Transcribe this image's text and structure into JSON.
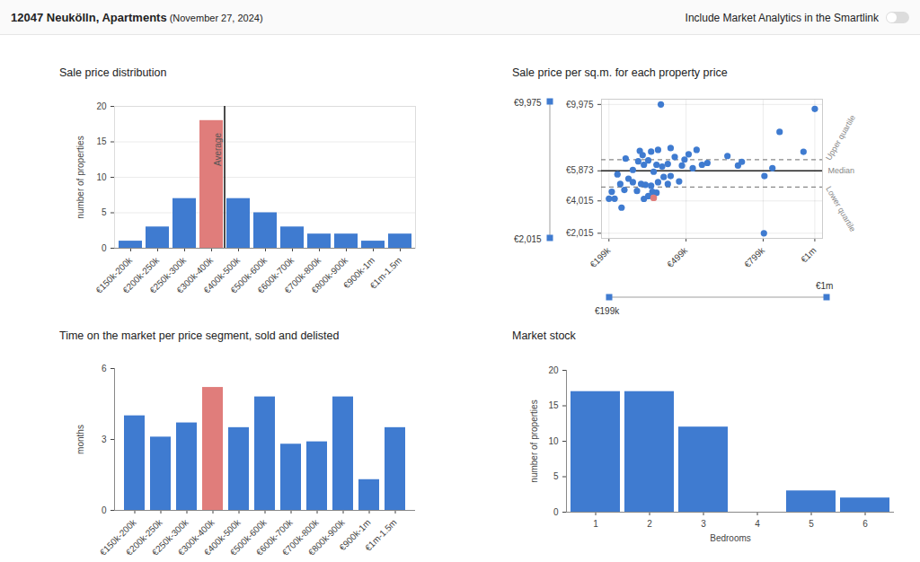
{
  "header": {
    "title": "12047 Neukölln, Apartments",
    "date": "(November 27, 2024)",
    "toggle_label": "Include Market Analytics in the Smartlink"
  },
  "chart_data": [
    {
      "type": "bar",
      "title": "Sale price distribution",
      "categories": [
        "€150k-200k",
        "€200k-250k",
        "€250k-300k",
        "€300k-400k",
        "€400k-500k",
        "€500k-600k",
        "€600k-700k",
        "€700k-800k",
        "€800k-900k",
        "€900k-1m",
        "€1m-1.5m"
      ],
      "values": [
        1,
        3,
        7,
        18,
        7,
        5,
        3,
        2,
        2,
        1,
        2
      ],
      "colors": [
        "#3f7bd0",
        "#3f7bd0",
        "#3f7bd0",
        "#e07d7b",
        "#3f7bd0",
        "#3f7bd0",
        "#3f7bd0",
        "#3f7bd0",
        "#3f7bd0",
        "#3f7bd0",
        "#3f7bd0"
      ],
      "ylabel": "number of properties",
      "ylim": [
        0,
        20
      ],
      "yticks": [
        0,
        5,
        10,
        15,
        20
      ],
      "grid": true,
      "annotations": [
        {
          "text": "Average",
          "after": "€300k-400k"
        }
      ]
    },
    {
      "type": "scatter",
      "title": "Sale price per sq.m. for each property price",
      "x": [
        199000,
        210000,
        221000,
        232000,
        243000,
        248000,
        259000,
        264000,
        275000,
        292000,
        292000,
        308000,
        313000,
        319000,
        324000,
        330000,
        335000,
        335000,
        341000,
        352000,
        352000,
        363000,
        363000,
        368000,
        373000,
        373000,
        384000,
        384000,
        390000,
        390000,
        401000,
        406000,
        412000,
        428000,
        428000,
        439000,
        439000,
        455000,
        472000,
        483000,
        493000,
        509000,
        525000,
        540000,
        561000,
        582000,
        660000,
        701000,
        716000,
        802000,
        804000,
        835000,
        863000,
        956000,
        1000000
      ],
      "values": [
        4150,
        4580,
        4150,
        5660,
        5060,
        3600,
        4690,
        6630,
        5390,
        5930,
        5170,
        4630,
        6460,
        7110,
        5060,
        6840,
        6250,
        4140,
        5010,
        6520,
        4310,
        7060,
        4950,
        4580,
        5820,
        4200,
        6250,
        4520,
        7170,
        5170,
        9975,
        6140,
        5490,
        6300,
        5060,
        7280,
        5550,
        6730,
        5220,
        6200,
        6570,
        6900,
        6030,
        7170,
        6250,
        6360,
        6790,
        6200,
        6430,
        2015,
        5550,
        6040,
        8280,
        7050,
        9700
      ],
      "colors": [
        "#3f7bd0",
        "#3f7bd0",
        "#3f7bd0",
        "#3f7bd0",
        "#3f7bd0",
        "#3f7bd0",
        "#3f7bd0",
        "#3f7bd0",
        "#3f7bd0",
        "#3f7bd0",
        "#3f7bd0",
        "#3f7bd0",
        "#3f7bd0",
        "#3f7bd0",
        "#3f7bd0",
        "#3f7bd0",
        "#3f7bd0",
        "#3f7bd0",
        "#3f7bd0",
        "#3f7bd0",
        "#3f7bd0",
        "#3f7bd0",
        "#3f7bd0",
        "#3f7bd0",
        "#3f7bd0",
        "#e07d7b",
        "#3f7bd0",
        "#3f7bd0",
        "#3f7bd0",
        "#3f7bd0",
        "#3f7bd0",
        "#3f7bd0",
        "#3f7bd0",
        "#3f7bd0",
        "#3f7bd0",
        "#3f7bd0",
        "#3f7bd0",
        "#3f7bd0",
        "#3f7bd0",
        "#3f7bd0",
        "#3f7bd0",
        "#3f7bd0",
        "#3f7bd0",
        "#3f7bd0",
        "#3f7bd0",
        "#3f7bd0",
        "#3f7bd0",
        "#3f7bd0",
        "#3f7bd0",
        "#3f7bd0",
        "#3f7bd0",
        "#3f7bd0",
        "#3f7bd0",
        "#3f7bd0",
        "#3f7bd0"
      ],
      "xlim": [
        170000,
        1030000
      ],
      "xticks": [
        {
          "value": 199000,
          "label": "€199k"
        },
        {
          "value": 499000,
          "label": "€499k"
        },
        {
          "value": 799000,
          "label": "€799k"
        },
        {
          "value": 1000000,
          "label": "€1m"
        }
      ],
      "ylim": [
        1700,
        10300
      ],
      "yticks": [
        {
          "value": 2015,
          "label": "€2,015"
        },
        {
          "value": 4015,
          "label": "€4,015"
        },
        {
          "value": 5873,
          "label": "€5,873"
        },
        {
          "value": 9975,
          "label": "€9,975"
        }
      ],
      "grid": true,
      "reference_lines": [
        {
          "label": "Upper quartile",
          "value": 6560,
          "line_style": "dashed"
        },
        {
          "label": "Median",
          "value": 5873,
          "line_style": "solid"
        },
        {
          "label": "Lower quartile",
          "value": 4870,
          "line_style": "dashed"
        }
      ],
      "sliders": {
        "y": {
          "min": "€2,015",
          "max": "€9,975"
        },
        "x": {
          "min": "€199k",
          "max": "€1m"
        }
      }
    },
    {
      "type": "bar",
      "title": "Time on the market per price segment, sold and delisted",
      "categories": [
        "€150k-200k",
        "€200k-250k",
        "€250k-300k",
        "€300k-400k",
        "€400k-500k",
        "€500k-600k",
        "€600k-700k",
        "€700k-800k",
        "€800k-900k",
        "€900k-1m",
        "€1m-1.5m"
      ],
      "values": [
        4.0,
        3.1,
        3.7,
        5.2,
        3.5,
        4.8,
        2.8,
        2.9,
        4.8,
        1.3,
        3.5
      ],
      "colors": [
        "#3f7bd0",
        "#3f7bd0",
        "#3f7bd0",
        "#e07d7b",
        "#3f7bd0",
        "#3f7bd0",
        "#3f7bd0",
        "#3f7bd0",
        "#3f7bd0",
        "#3f7bd0",
        "#3f7bd0"
      ],
      "ylabel": "months",
      "ylim": [
        0,
        6
      ],
      "yticks": [
        0,
        3,
        6
      ],
      "grid": false
    },
    {
      "type": "bar",
      "title": "Market stock",
      "categories": [
        "1",
        "2",
        "3",
        "4",
        "5",
        "6"
      ],
      "values": [
        17,
        17,
        12,
        0,
        3,
        2
      ],
      "color": "#3f7bd0",
      "xlabel": "Bedrooms",
      "ylabel": "number of properties",
      "ylim": [
        0,
        20
      ],
      "yticks": [
        0,
        5,
        10,
        15,
        20
      ],
      "grid": false
    }
  ]
}
